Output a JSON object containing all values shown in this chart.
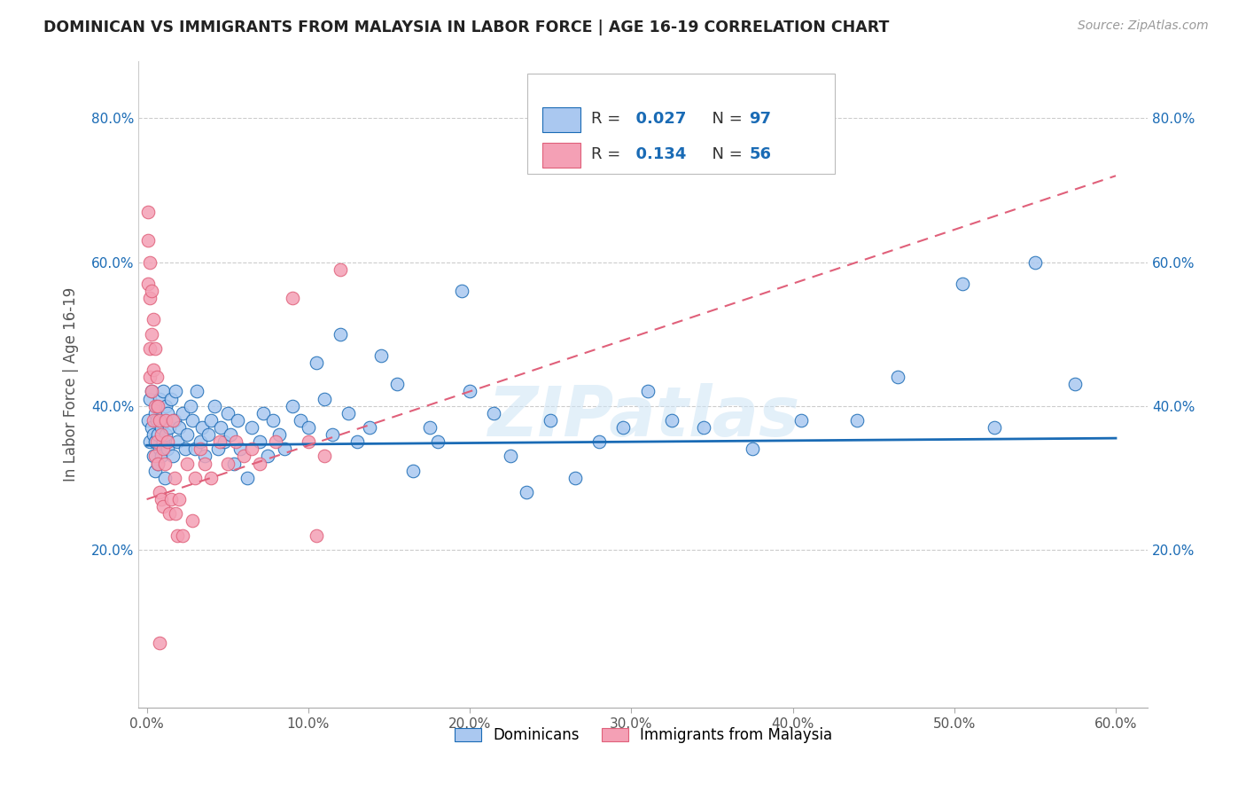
{
  "title": "DOMINICAN VS IMMIGRANTS FROM MALAYSIA IN LABOR FORCE | AGE 16-19 CORRELATION CHART",
  "source": "Source: ZipAtlas.com",
  "ylabel": "In Labor Force | Age 16-19",
  "xlim": [
    -0.005,
    0.62
  ],
  "ylim": [
    -0.02,
    0.88
  ],
  "xticks": [
    0.0,
    0.1,
    0.2,
    0.3,
    0.4,
    0.5,
    0.6
  ],
  "yticks": [
    0.2,
    0.4,
    0.6,
    0.8
  ],
  "ytick_labels": [
    "20.0%",
    "40.0%",
    "60.0%",
    "80.0%"
  ],
  "xtick_labels": [
    "0.0%",
    "10.0%",
    "20.0%",
    "30.0%",
    "40.0%",
    "50.0%",
    "60.0%"
  ],
  "legend_dominicans": "Dominicans",
  "legend_malaysia": "Immigrants from Malaysia",
  "R_dominican": 0.027,
  "N_dominican": 97,
  "R_malaysia": 0.134,
  "N_malaysia": 56,
  "color_dominican": "#aac8f0",
  "color_malaysia": "#f4a0b5",
  "color_line_dominican": "#1a6bb5",
  "color_line_malaysia": "#e0607a",
  "watermark": "ZIPatlas",
  "dom_trend_x": [
    0.0,
    0.6
  ],
  "dom_trend_y": [
    0.345,
    0.355
  ],
  "mal_trend_x": [
    0.0,
    0.6
  ],
  "mal_trend_y": [
    0.27,
    0.72
  ],
  "dominican_x": [
    0.001,
    0.002,
    0.002,
    0.003,
    0.003,
    0.004,
    0.004,
    0.005,
    0.005,
    0.005,
    0.006,
    0.006,
    0.007,
    0.007,
    0.008,
    0.008,
    0.009,
    0.009,
    0.01,
    0.01,
    0.011,
    0.011,
    0.012,
    0.012,
    0.013,
    0.013,
    0.014,
    0.015,
    0.016,
    0.017,
    0.018,
    0.019,
    0.02,
    0.022,
    0.024,
    0.025,
    0.027,
    0.028,
    0.03,
    0.031,
    0.033,
    0.034,
    0.036,
    0.038,
    0.04,
    0.042,
    0.044,
    0.046,
    0.048,
    0.05,
    0.052,
    0.054,
    0.056,
    0.058,
    0.062,
    0.065,
    0.07,
    0.072,
    0.075,
    0.078,
    0.082,
    0.085,
    0.09,
    0.095,
    0.1,
    0.105,
    0.11,
    0.115,
    0.12,
    0.125,
    0.13,
    0.138,
    0.145,
    0.155,
    0.165,
    0.175,
    0.18,
    0.195,
    0.2,
    0.215,
    0.225,
    0.235,
    0.25,
    0.265,
    0.28,
    0.295,
    0.31,
    0.325,
    0.345,
    0.375,
    0.405,
    0.44,
    0.465,
    0.505,
    0.525,
    0.55,
    0.575
  ],
  "dominican_y": [
    0.38,
    0.41,
    0.35,
    0.42,
    0.37,
    0.33,
    0.36,
    0.39,
    0.31,
    0.35,
    0.4,
    0.38,
    0.32,
    0.36,
    0.34,
    0.41,
    0.33,
    0.37,
    0.35,
    0.42,
    0.38,
    0.3,
    0.4,
    0.36,
    0.34,
    0.39,
    0.37,
    0.41,
    0.33,
    0.38,
    0.42,
    0.35,
    0.37,
    0.39,
    0.34,
    0.36,
    0.4,
    0.38,
    0.34,
    0.42,
    0.35,
    0.37,
    0.33,
    0.36,
    0.38,
    0.4,
    0.34,
    0.37,
    0.35,
    0.39,
    0.36,
    0.32,
    0.38,
    0.34,
    0.3,
    0.37,
    0.35,
    0.39,
    0.33,
    0.38,
    0.36,
    0.34,
    0.4,
    0.38,
    0.37,
    0.46,
    0.41,
    0.36,
    0.5,
    0.39,
    0.35,
    0.37,
    0.47,
    0.43,
    0.31,
    0.37,
    0.35,
    0.56,
    0.42,
    0.39,
    0.33,
    0.28,
    0.38,
    0.3,
    0.35,
    0.37,
    0.42,
    0.38,
    0.37,
    0.34,
    0.38,
    0.38,
    0.44,
    0.57,
    0.37,
    0.6,
    0.43
  ],
  "malaysia_x": [
    0.001,
    0.001,
    0.001,
    0.002,
    0.002,
    0.002,
    0.002,
    0.003,
    0.003,
    0.003,
    0.004,
    0.004,
    0.004,
    0.005,
    0.005,
    0.005,
    0.006,
    0.006,
    0.007,
    0.007,
    0.008,
    0.008,
    0.009,
    0.009,
    0.01,
    0.01,
    0.011,
    0.012,
    0.013,
    0.014,
    0.015,
    0.016,
    0.017,
    0.018,
    0.019,
    0.02,
    0.022,
    0.025,
    0.028,
    0.03,
    0.033,
    0.036,
    0.04,
    0.045,
    0.05,
    0.055,
    0.06,
    0.065,
    0.07,
    0.08,
    0.09,
    0.1,
    0.105,
    0.11,
    0.12,
    0.008
  ],
  "malaysia_y": [
    0.67,
    0.63,
    0.57,
    0.6,
    0.55,
    0.48,
    0.44,
    0.56,
    0.5,
    0.42,
    0.52,
    0.45,
    0.38,
    0.48,
    0.4,
    0.33,
    0.44,
    0.35,
    0.4,
    0.32,
    0.38,
    0.28,
    0.36,
    0.27,
    0.34,
    0.26,
    0.32,
    0.38,
    0.35,
    0.25,
    0.27,
    0.38,
    0.3,
    0.25,
    0.22,
    0.27,
    0.22,
    0.32,
    0.24,
    0.3,
    0.34,
    0.32,
    0.3,
    0.35,
    0.32,
    0.35,
    0.33,
    0.34,
    0.32,
    0.35,
    0.55,
    0.35,
    0.22,
    0.33,
    0.59,
    0.07
  ]
}
